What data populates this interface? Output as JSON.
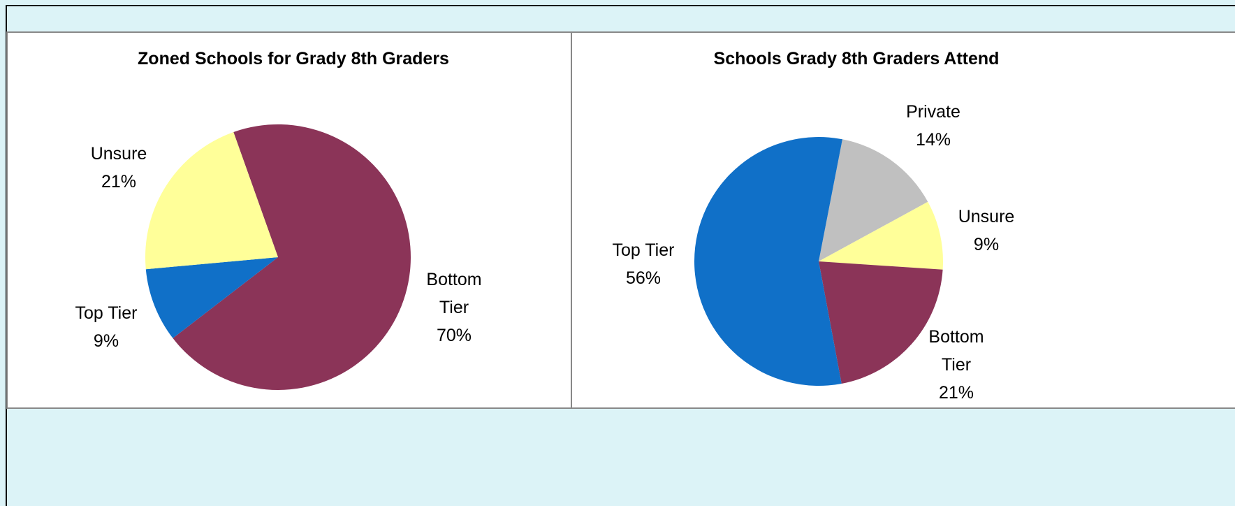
{
  "chart_data": [
    {
      "type": "pie",
      "title": "Zoned Schools for Grady 8th Graders",
      "categories": [
        "Bottom Tier",
        "Top Tier",
        "Unsure"
      ],
      "values": [
        70,
        9,
        21
      ],
      "value_labels": [
        "70%",
        "9%",
        "21%"
      ],
      "colors": [
        "#8b3458",
        "#1070c8",
        "#ffff99"
      ]
    },
    {
      "type": "pie",
      "title": "Schools Grady 8th Graders Attend",
      "categories": [
        "Private",
        "Unsure",
        "Bottom Tier",
        "Top Tier"
      ],
      "values": [
        14,
        9,
        21,
        56
      ],
      "value_labels": [
        "14%",
        "9%",
        "21%",
        "56%"
      ],
      "colors": [
        "#c0c0c0",
        "#ffff99",
        "#8b3458",
        "#1070c8"
      ]
    }
  ]
}
